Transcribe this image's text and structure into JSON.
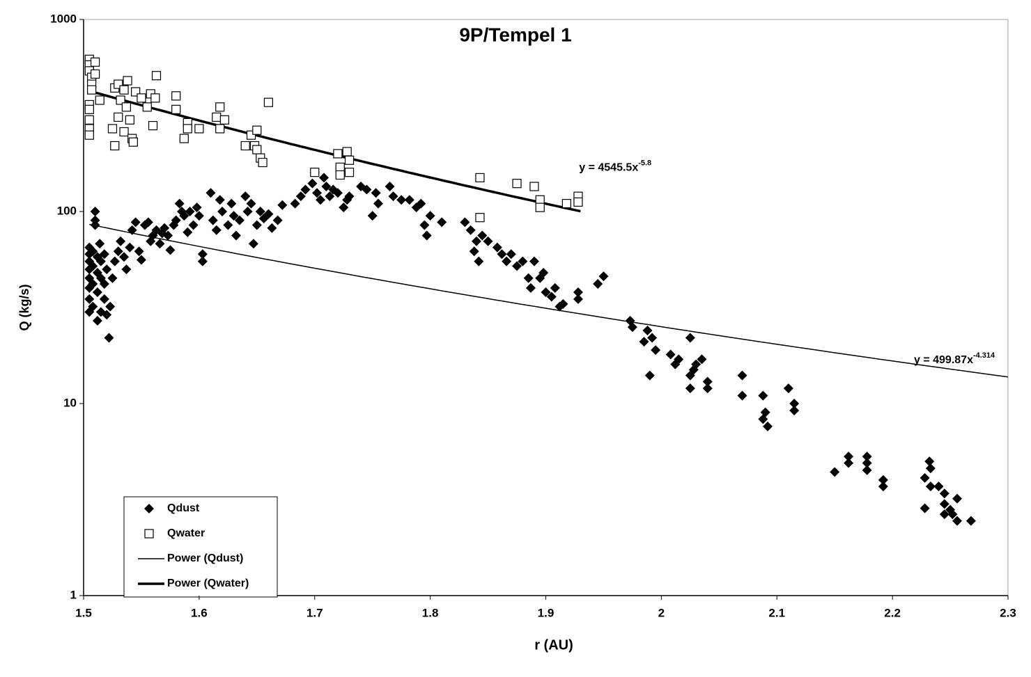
{
  "chart_data": {
    "type": "scatter",
    "title": "9P/Tempel 1",
    "x_label": "r (AU)",
    "y_label": "Q (kg/s)",
    "x_label_color": "#8b1a1a",
    "xlim": [
      1.5,
      2.3
    ],
    "xticks": [
      1.5,
      1.6,
      1.7,
      1.8,
      1.9,
      2,
      2.1,
      2.2,
      2.3
    ],
    "ylim": [
      1,
      1000
    ],
    "yticks": [
      1,
      10,
      100,
      1000
    ],
    "y_log": true,
    "legend": "lower left",
    "series": [
      {
        "name": "Qdust",
        "color": "#000000",
        "marker": "diamond",
        "x": [
          1.505,
          1.505,
          1.505,
          1.505,
          1.505,
          1.505,
          1.505,
          1.505,
          1.508,
          1.508,
          1.508,
          1.508,
          1.51,
          1.51,
          1.51,
          1.512,
          1.512,
          1.512,
          1.512,
          1.514,
          1.515,
          1.515,
          1.515,
          1.518,
          1.518,
          1.518,
          1.52,
          1.52,
          1.522,
          1.523,
          1.525,
          1.527,
          1.53,
          1.532,
          1.535,
          1.537,
          1.54,
          1.542,
          1.545,
          1.548,
          1.55,
          1.553,
          1.556,
          1.558,
          1.56,
          1.563,
          1.566,
          1.568,
          1.57,
          1.573,
          1.575,
          1.578,
          1.58,
          1.583,
          1.585,
          1.587,
          1.59,
          1.592,
          1.595,
          1.598,
          1.6,
          1.603,
          1.603,
          1.61,
          1.612,
          1.615,
          1.618,
          1.62,
          1.625,
          1.628,
          1.63,
          1.632,
          1.635,
          1.64,
          1.642,
          1.645,
          1.647,
          1.65,
          1.653,
          1.656,
          1.66,
          1.663,
          1.668,
          1.672,
          1.683,
          1.688,
          1.692,
          1.698,
          1.7,
          1.702,
          1.705,
          1.708,
          1.71,
          1.713,
          1.716,
          1.72,
          1.725,
          1.728,
          1.73,
          1.74,
          1.745,
          1.75,
          1.753,
          1.755,
          1.765,
          1.768,
          1.775,
          1.782,
          1.788,
          1.792,
          1.795,
          1.797,
          1.8,
          1.81,
          1.83,
          1.835,
          1.838,
          1.84,
          1.842,
          1.845,
          1.85,
          1.858,
          1.862,
          1.866,
          1.87,
          1.875,
          1.88,
          1.885,
          1.887,
          1.89,
          1.895,
          1.898,
          1.9,
          1.905,
          1.908,
          1.912,
          1.915,
          1.928,
          1.928,
          1.945,
          1.95,
          1.973,
          1.975,
          1.985,
          1.988,
          1.99,
          1.992,
          1.995,
          2.008,
          2.012,
          2.015,
          2.025,
          2.025,
          2.025,
          2.028,
          2.03,
          2.035,
          2.04,
          2.04,
          2.07,
          2.07,
          2.088,
          2.09,
          2.088,
          2.092,
          2.11,
          2.115,
          2.115,
          2.15,
          2.162,
          2.162,
          2.178,
          2.178,
          2.178,
          2.192,
          2.192,
          2.228,
          2.228,
          2.232,
          2.233,
          2.233,
          2.24,
          2.245,
          2.245,
          2.245,
          2.25,
          2.252,
          2.256,
          2.256,
          2.268
        ],
        "values": [
          30,
          35,
          40,
          45,
          50,
          55,
          60,
          65,
          32,
          42,
          52,
          62,
          100,
          90,
          85,
          27,
          38,
          48,
          58,
          68,
          30,
          45,
          55,
          35,
          42,
          60,
          29,
          50,
          22,
          32,
          45,
          55,
          62,
          70,
          58,
          50,
          65,
          80,
          88,
          62,
          56,
          85,
          88,
          70,
          75,
          80,
          68,
          77,
          82,
          75,
          63,
          85,
          90,
          110,
          100,
          95,
          78,
          100,
          85,
          105,
          95,
          60,
          55,
          125,
          90,
          80,
          115,
          100,
          85,
          110,
          95,
          75,
          90,
          120,
          100,
          110,
          68,
          85,
          100,
          92,
          97,
          82,
          90,
          108,
          110,
          120,
          130,
          140,
          160,
          125,
          115,
          150,
          135,
          120,
          130,
          125,
          105,
          115,
          120,
          135,
          130,
          95,
          125,
          110,
          135,
          120,
          115,
          115,
          105,
          110,
          85,
          75,
          95,
          88,
          88,
          80,
          62,
          70,
          55,
          75,
          70,
          65,
          60,
          55,
          60,
          52,
          55,
          45,
          40,
          55,
          45,
          48,
          38,
          36,
          40,
          32,
          33,
          35,
          38,
          42,
          46,
          27,
          25,
          21,
          24,
          14,
          22,
          19,
          18,
          16,
          17,
          22,
          12,
          14,
          15,
          16,
          17,
          12,
          13,
          14,
          11,
          11,
          9,
          8.3,
          7.6,
          12,
          10,
          9.2,
          4.4,
          5.3,
          4.9,
          5.3,
          4.9,
          4.5,
          4.0,
          3.7,
          4.1,
          2.85,
          5.0,
          4.6,
          3.7,
          3.7,
          3.4,
          3.0,
          2.65,
          2.8,
          2.65,
          3.2,
          2.45,
          2.45
        ]
      },
      {
        "name": "Qwater",
        "color": "#ffffff",
        "edge_color": "#000000",
        "marker": "square",
        "x": [
          1.505,
          1.505,
          1.505,
          1.507,
          1.507,
          1.507,
          1.505,
          1.505,
          1.505,
          1.505,
          1.505,
          1.51,
          1.51,
          1.514,
          1.525,
          1.527,
          1.527,
          1.53,
          1.53,
          1.532,
          1.535,
          1.535,
          1.537,
          1.538,
          1.54,
          1.542,
          1.543,
          1.545,
          1.55,
          1.555,
          1.558,
          1.56,
          1.562,
          1.563,
          1.58,
          1.58,
          1.587,
          1.59,
          1.59,
          1.6,
          1.615,
          1.618,
          1.618,
          1.622,
          1.64,
          1.645,
          1.648,
          1.65,
          1.65,
          1.653,
          1.655,
          1.66,
          1.7,
          1.72,
          1.722,
          1.722,
          1.728,
          1.73,
          1.73,
          1.843,
          1.843,
          1.875,
          1.89,
          1.895,
          1.895,
          1.918,
          1.928,
          1.928
        ],
        "values": [
          620,
          580,
          540,
          500,
          460,
          430,
          360,
          340,
          300,
          270,
          250,
          520,
          600,
          380,
          270,
          440,
          220,
          460,
          310,
          380,
          430,
          260,
          350,
          480,
          300,
          240,
          230,
          420,
          390,
          350,
          410,
          280,
          390,
          510,
          400,
          340,
          240,
          290,
          270,
          270,
          310,
          350,
          270,
          300,
          220,
          250,
          220,
          265,
          210,
          190,
          180,
          370,
          160,
          200,
          170,
          155,
          205,
          185,
          160,
          150,
          93,
          140,
          135,
          115,
          105,
          110,
          120,
          112
        ]
      }
    ],
    "trendlines": [
      {
        "name": "Power (Qdust)",
        "color": "#000000",
        "line_width": 1.5,
        "coefficient": 499.87,
        "exponent": -4.314,
        "xrange": [
          1.505,
          2.3
        ],
        "label": "y = 499.87x",
        "label_exponent": "-4.314"
      },
      {
        "name": "Power (Qwater)",
        "color": "#000000",
        "line_width": 3.5,
        "coefficient": 4545.5,
        "exponent": -5.8,
        "xrange": [
          1.505,
          1.93
        ],
        "label": "y = 4545.5x",
        "label_exponent": "-5.8"
      }
    ]
  }
}
